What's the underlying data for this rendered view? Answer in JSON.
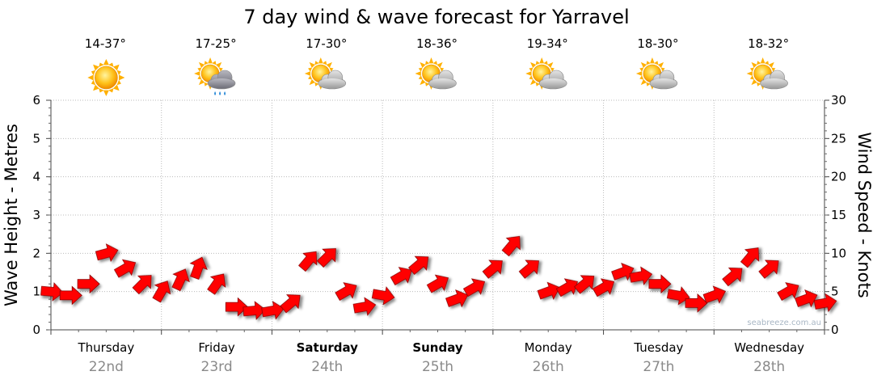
{
  "chart_data": {
    "type": "line",
    "title": "7 day wind & wave forecast for Yarravel",
    "ylabel_left": "Wave Height - Metres",
    "ylabel_right": "Wind Speed - Knots",
    "ylim_left": [
      0,
      6
    ],
    "ylim_right": [
      0,
      30
    ],
    "yticks_left": [
      "0",
      "1",
      "2",
      "3",
      "4",
      "5",
      "6"
    ],
    "yticks_right": [
      "0",
      "5",
      "10",
      "15",
      "20",
      "25",
      "30"
    ],
    "grid": true,
    "credit": "seabreeze.com.au",
    "colors": {
      "arrow": "#ff0000",
      "arrow_outline": "#8b0000",
      "grid": "#bbbbbb",
      "day_date": "#8a8a8a"
    },
    "days": [
      {
        "name": "Thursday",
        "date": "22nd",
        "bold": false,
        "temp": "14-37°",
        "icon": "sun-icon"
      },
      {
        "name": "Friday",
        "date": "23rd",
        "bold": false,
        "temp": "17-25°",
        "icon": "sun-cloud-rain-icon"
      },
      {
        "name": "Saturday",
        "date": "24th",
        "bold": true,
        "temp": "17-30°",
        "icon": "sun-cloud-icon"
      },
      {
        "name": "Sunday",
        "date": "25th",
        "bold": true,
        "temp": "18-36°",
        "icon": "sun-cloud-icon"
      },
      {
        "name": "Monday",
        "date": "26th",
        "bold": false,
        "temp": "19-34°",
        "icon": "sun-cloud-icon"
      },
      {
        "name": "Tuesday",
        "date": "27th",
        "bold": false,
        "temp": "18-30°",
        "icon": "sun-cloud-icon"
      },
      {
        "name": "Wednesday",
        "date": "28th",
        "bold": false,
        "temp": "18-32°",
        "icon": "sun-cloud-icon"
      }
    ],
    "series": [
      {
        "name": "Wind Speed",
        "unit": "knots",
        "x_days": [
          0.0,
          0.17,
          0.33,
          0.5,
          0.67,
          0.83,
          1.0,
          1.17,
          1.33,
          1.5,
          1.67,
          1.83,
          2.0,
          2.17,
          2.33,
          2.5,
          2.67,
          2.83,
          3.0,
          3.17,
          3.33,
          3.5,
          3.67,
          3.83,
          4.0,
          4.17,
          4.33,
          4.5,
          4.67,
          4.83,
          5.0,
          5.17,
          5.33,
          5.5,
          5.67,
          5.83,
          6.0,
          6.17,
          6.33,
          6.5,
          6.67,
          6.83,
          7.0
        ],
        "values": [
          5.0,
          4.5,
          6.0,
          10.0,
          8.0,
          6.0,
          5.0,
          6.5,
          8.0,
          6.0,
          3.0,
          2.5,
          2.5,
          3.5,
          9.0,
          9.5,
          5.0,
          3.0,
          4.5,
          7.0,
          8.5,
          6.0,
          4.0,
          5.5,
          8.0,
          11.0,
          8.0,
          5.0,
          5.5,
          6.0,
          5.5,
          7.5,
          7.0,
          6.0,
          4.5,
          3.5,
          4.5,
          7.0,
          9.5,
          8.0,
          5.0,
          4.0,
          3.5
        ],
        "direction_deg": [
          275,
          270,
          270,
          255,
          240,
          225,
          210,
          205,
          200,
          215,
          270,
          265,
          260,
          230,
          220,
          225,
          240,
          260,
          280,
          240,
          230,
          240,
          250,
          240,
          230,
          220,
          230,
          250,
          240,
          230,
          240,
          250,
          260,
          270,
          280,
          270,
          250,
          230,
          220,
          230,
          240,
          250,
          260
        ]
      }
    ]
  }
}
